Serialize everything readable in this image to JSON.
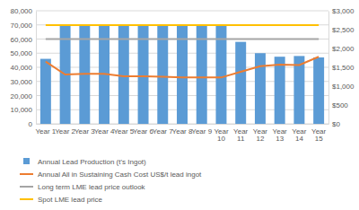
{
  "chart_data": {
    "type": "bar",
    "categories": [
      "Year 1",
      "Year 2",
      "Year 3",
      "Year 4",
      "Year 5",
      "Year 6",
      "Year 7",
      "Year 8",
      "Year 9",
      "Year 10",
      "Year 11",
      "Year 12",
      "Year 13",
      "Year 14",
      "Year 15"
    ],
    "series": [
      {
        "name": "Annual Lead Production (t's Ingot)",
        "type": "bar",
        "color": "#5b9bd5",
        "values": [
          46000,
          69500,
          69500,
          69500,
          69500,
          69500,
          69500,
          69500,
          69500,
          69500,
          58000,
          50000,
          47500,
          48000,
          47000
        ]
      },
      {
        "name": "Annual All in Sustaining Cash Cost US$/t lead ingot",
        "type": "line",
        "axis": "y2",
        "color": "#ed7d31",
        "values": [
          1650,
          1310,
          1330,
          1330,
          1260,
          1260,
          1250,
          1230,
          1230,
          1230,
          1380,
          1530,
          1570,
          1560,
          1780
        ]
      },
      {
        "name": "Long term LME lead price outlook",
        "type": "line",
        "axis": "y2",
        "color": "#a5a5a5",
        "values": [
          2250,
          2250,
          2250,
          2250,
          2250,
          2250,
          2250,
          2250,
          2250,
          2250,
          2250,
          2250,
          2250,
          2250,
          2250
        ]
      },
      {
        "name": "Spot LME lead price",
        "type": "line",
        "axis": "y2",
        "color": "#ffc000",
        "values": [
          2620,
          2620,
          2620,
          2620,
          2620,
          2620,
          2620,
          2620,
          2620,
          2620,
          2620,
          2620,
          2620,
          2620,
          2620
        ]
      }
    ],
    "ylim": [
      0,
      80000
    ],
    "yticks": [
      0,
      {
        "value": 10000,
        "label": "10,000"
      },
      {
        "value": 20000,
        "label": "20,000"
      },
      {
        "value": 30000,
        "label": "30,000"
      },
      {
        "value": 40000,
        "label": "40,000"
      },
      {
        "value": 50000,
        "label": "50,000"
      },
      {
        "value": 60000,
        "label": "60,000"
      },
      {
        "value": 70000,
        "label": "70,000"
      },
      {
        "value": 80000,
        "label": "80,000"
      }
    ],
    "y2lim": [
      0,
      3000
    ],
    "y2ticks": [
      {
        "value": 0,
        "label": "$0"
      },
      {
        "value": 500,
        "label": "$500"
      },
      {
        "value": 1000,
        "label": "$1,000"
      },
      {
        "value": 1500,
        "label": "$1,500"
      },
      {
        "value": 2000,
        "label": "$2,000"
      },
      {
        "value": 2500,
        "label": "$2,500"
      },
      {
        "value": 3000,
        "label": "$3,000"
      }
    ],
    "grid": true,
    "legend": "bottom"
  }
}
